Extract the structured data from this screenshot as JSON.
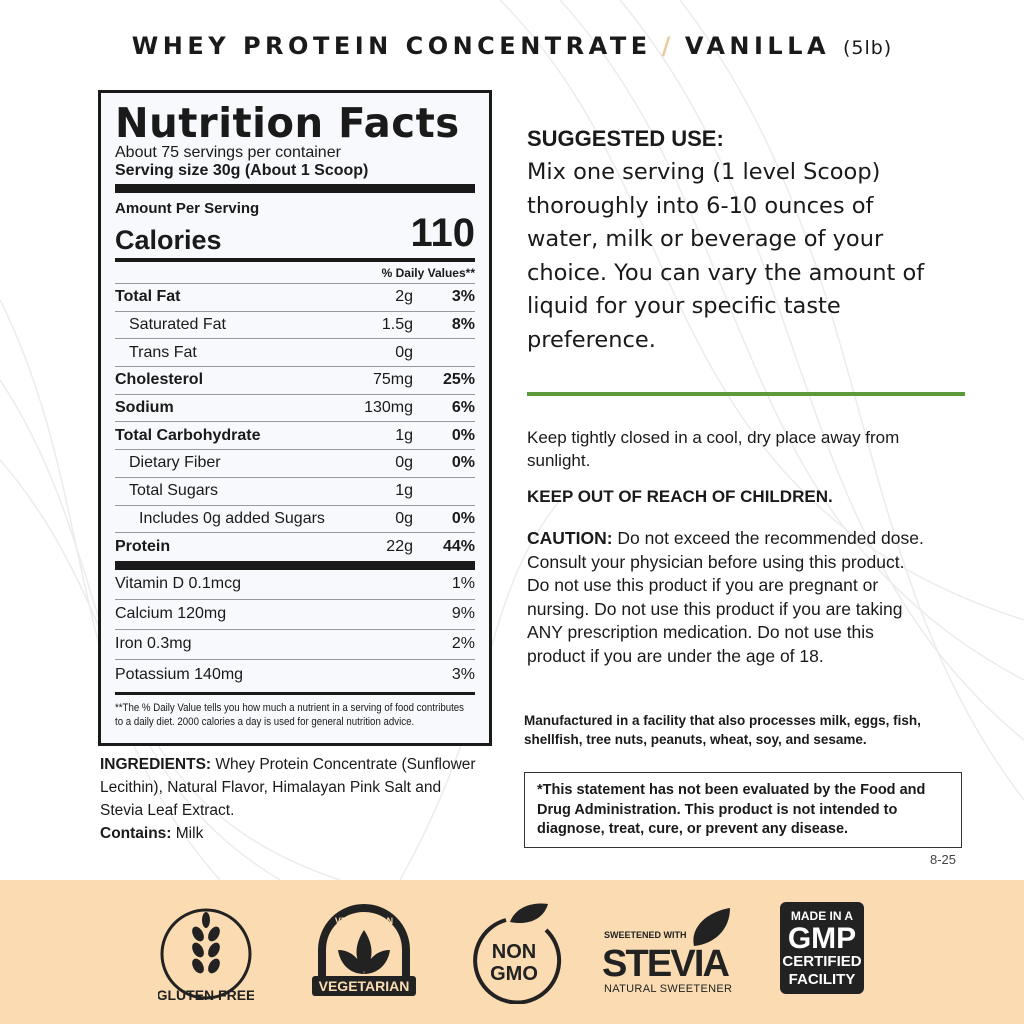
{
  "header": {
    "product": "WHEY PROTEIN CONCENTRATE",
    "separator": "/",
    "flavor": "VANILLA",
    "size": "(5lb)"
  },
  "nutrition": {
    "title": "Nutrition Facts",
    "servings": "About 75 servings per container",
    "serving_size": "Serving size 30g (About 1 Scoop)",
    "amount_per_serving": "Amount Per Serving",
    "calories_label": "Calories",
    "calories": "110",
    "dv_header": "% Daily Values**",
    "rows": [
      {
        "name": "Total Fat",
        "amount": "2g",
        "dv": "3%",
        "style": "b"
      },
      {
        "name": "Saturated Fat",
        "amount": "1.5g",
        "dv": "8%",
        "style": "i1"
      },
      {
        "name": "Trans Fat",
        "amount": "0g",
        "dv": "",
        "style": "i1"
      },
      {
        "name": "Cholesterol",
        "amount": "75mg",
        "dv": "25%",
        "style": "b"
      },
      {
        "name": "Sodium",
        "amount": "130mg",
        "dv": "6%",
        "style": "b"
      },
      {
        "name": "Total Carbohydrate",
        "amount": "1g",
        "dv": "0%",
        "style": "b"
      },
      {
        "name": "Dietary Fiber",
        "amount": "0g",
        "dv": "0%",
        "style": "i1"
      },
      {
        "name": "Total Sugars",
        "amount": "1g",
        "dv": "",
        "style": "i1"
      },
      {
        "name": "Includes 0g added Sugars",
        "amount": "0g",
        "dv": "0%",
        "style": "i2"
      },
      {
        "name": "Protein",
        "amount": "22g",
        "dv": "44%",
        "style": "b"
      }
    ],
    "vitamins": [
      {
        "name": "Vitamin D 0.1mcg",
        "dv": "1%"
      },
      {
        "name": "Calcium 120mg",
        "dv": "9%"
      },
      {
        "name": "Iron 0.3mg",
        "dv": "2%"
      },
      {
        "name": "Potassium 140mg",
        "dv": "3%"
      }
    ],
    "footnote": "**The % Daily Value tells you how much a nutrient in a  serving of food contributes to a daily diet. 2000 calories a day is used for general nutrition advice."
  },
  "ingredients": {
    "label": "INGREDIENTS:",
    "text": " Whey Protein Concentrate (Sunflower Lecithin), Natural Flavor, Himalayan Pink Salt and Stevia Leaf Extract.",
    "contains_label": "Contains:",
    "contains": " Milk"
  },
  "suggested": {
    "heading": "SUGGESTED USE:",
    "body": "Mix one serving (1 level Scoop) thoroughly into 6-10 ounces of water, milk or beverage of your choice. You can vary the amount of liquid for your specific taste preference."
  },
  "storage": "Keep tightly closed in a cool, dry place away from sunlight.",
  "children": "KEEP OUT OF REACH OF CHILDREN.",
  "caution": {
    "label": "CAUTION:",
    "text": " Do not exceed the recommended dose. Consult your physician before using this product. Do not use this product if you are pregnant or nursing. Do not use this product if you are taking ANY prescription medication. Do not use this product if you are under the age of 18."
  },
  "manufacturing": "Manufactured in a facility that also processes milk, eggs, fish, shellfish, tree nuts, peanuts, wheat, soy, and sesame.",
  "disclaimer": "*This statement has not been evaluated by the Food and Drug Administration. This product is not intended to diagnose, treat, cure, or prevent any disease.",
  "code": "8-25",
  "badges": {
    "gluten": "GLUTEN FREE",
    "veg_top": "VEGETARIAN",
    "veg_bottom": "VEGETARIAN",
    "nongmo_1": "NON",
    "nongmo_2": "GMO",
    "stevia_top": "SWEETENED WITH",
    "stevia": "STEVIA",
    "stevia_bottom": "NATURAL SWEETENER",
    "gmp_1": "MADE IN A",
    "gmp_2": "GMP",
    "gmp_3": "CERTIFIED",
    "gmp_4": "FACILITY"
  },
  "colors": {
    "band": "#fbdcb2",
    "green_rule": "#5c9a3c",
    "slash": "#e9c9a0",
    "ink": "#1a1a1a"
  }
}
